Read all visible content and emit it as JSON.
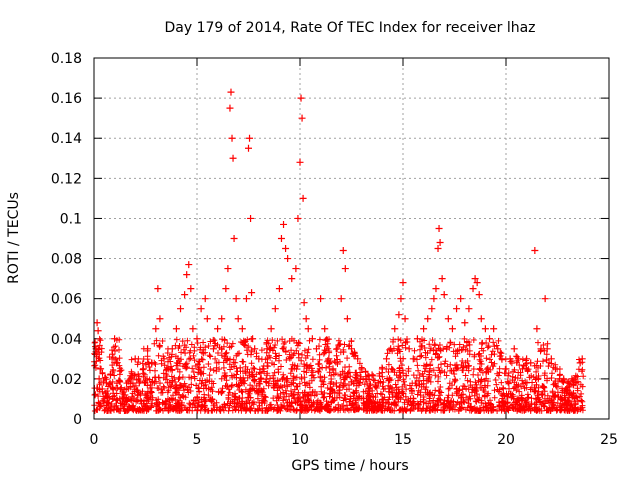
{
  "chart_data": {
    "type": "scatter",
    "title": "Day 179 of 2014, Rate Of TEC Index for receiver lhaz",
    "xlabel": "GPS time / hours",
    "ylabel": "ROTI / TECUs",
    "xlim": [
      0,
      25
    ],
    "ylim": [
      0,
      0.18
    ],
    "x_ticks": [
      "0",
      "5",
      "10",
      "15",
      "20",
      "25"
    ],
    "y_ticks": [
      "0",
      "0.02",
      "0.04",
      "0.06",
      "0.08",
      "0.1",
      "0.12",
      "0.14",
      "0.16",
      "0.18"
    ],
    "grid": true,
    "legend": "none",
    "marker": "+",
    "color": "#ff0000",
    "series": [
      {
        "x": [
          0.05,
          0.1,
          0.15,
          0.2,
          0.25,
          0.3,
          0.4,
          0.5,
          0.6,
          0.8,
          1.0,
          1.1,
          1.3,
          1.5,
          1.8,
          2.0,
          2.2,
          2.4,
          2.6,
          2.8,
          3.0,
          3.1,
          3.2,
          3.4,
          3.6,
          3.8,
          4.0,
          4.2,
          4.4,
          4.5,
          4.6,
          4.7,
          4.8,
          5.0,
          5.2,
          5.4,
          5.5,
          5.8,
          6.0,
          6.2,
          6.4,
          6.5,
          6.6,
          6.65,
          6.7,
          6.75,
          6.8,
          6.9,
          7.0,
          7.2,
          7.4,
          7.5,
          7.55,
          7.6,
          7.65,
          7.7,
          7.8,
          8.0,
          8.2,
          8.4,
          8.6,
          8.8,
          9.0,
          9.1,
          9.2,
          9.3,
          9.4,
          9.6,
          9.8,
          9.9,
          10.0,
          10.05,
          10.1,
          10.15,
          10.2,
          10.3,
          10.4,
          10.6,
          10.8,
          11.0,
          11.2,
          11.4,
          11.6,
          11.8,
          12.0,
          12.1,
          12.2,
          12.3,
          12.5,
          12.8,
          13.0,
          13.2,
          13.5,
          13.8,
          14.0,
          14.2,
          14.4,
          14.6,
          14.8,
          14.9,
          15.0,
          15.1,
          15.3,
          15.5,
          15.7,
          16.0,
          16.2,
          16.4,
          16.5,
          16.6,
          16.7,
          16.75,
          16.8,
          16.9,
          17.0,
          17.2,
          17.4,
          17.6,
          17.8,
          18.0,
          18.2,
          18.4,
          18.5,
          18.6,
          18.7,
          18.8,
          19.0,
          19.2,
          19.4,
          19.6,
          19.8,
          20.0,
          20.2,
          20.4,
          20.6,
          20.8,
          21.0,
          21.2,
          21.4,
          21.5,
          21.7,
          21.9,
          22.0,
          22.2,
          22.4,
          22.6,
          22.8,
          23.0,
          23.2,
          23.4,
          23.6,
          23.7
        ],
        "y": [
          0.012,
          0.035,
          0.048,
          0.044,
          0.02,
          0.025,
          0.015,
          0.01,
          0.018,
          0.022,
          0.04,
          0.028,
          0.015,
          0.012,
          0.02,
          0.03,
          0.018,
          0.025,
          0.035,
          0.028,
          0.045,
          0.065,
          0.05,
          0.03,
          0.025,
          0.035,
          0.045,
          0.055,
          0.062,
          0.072,
          0.077,
          0.065,
          0.045,
          0.04,
          0.055,
          0.06,
          0.05,
          0.035,
          0.045,
          0.05,
          0.065,
          0.075,
          0.155,
          0.163,
          0.14,
          0.13,
          0.09,
          0.06,
          0.05,
          0.045,
          0.06,
          0.135,
          0.14,
          0.1,
          0.063,
          0.04,
          0.035,
          0.03,
          0.025,
          0.035,
          0.045,
          0.055,
          0.065,
          0.09,
          0.097,
          0.085,
          0.08,
          0.07,
          0.075,
          0.1,
          0.128,
          0.16,
          0.15,
          0.11,
          0.058,
          0.05,
          0.045,
          0.04,
          0.035,
          0.06,
          0.045,
          0.03,
          0.025,
          0.035,
          0.06,
          0.084,
          0.075,
          0.05,
          0.035,
          0.03,
          0.025,
          0.02,
          0.022,
          0.018,
          0.025,
          0.03,
          0.035,
          0.045,
          0.052,
          0.06,
          0.068,
          0.05,
          0.035,
          0.03,
          0.04,
          0.045,
          0.05,
          0.055,
          0.06,
          0.065,
          0.085,
          0.095,
          0.088,
          0.07,
          0.062,
          0.05,
          0.045,
          0.055,
          0.06,
          0.048,
          0.055,
          0.065,
          0.07,
          0.068,
          0.062,
          0.05,
          0.045,
          0.04,
          0.045,
          0.035,
          0.03,
          0.025,
          0.03,
          0.035,
          0.03,
          0.025,
          0.03,
          0.028,
          0.084,
          0.045,
          0.035,
          0.06,
          0.035,
          0.03,
          0.025,
          0.02,
          0.02,
          0.018,
          0.02,
          0.018,
          0.028,
          0.03
        ]
      }
    ]
  }
}
